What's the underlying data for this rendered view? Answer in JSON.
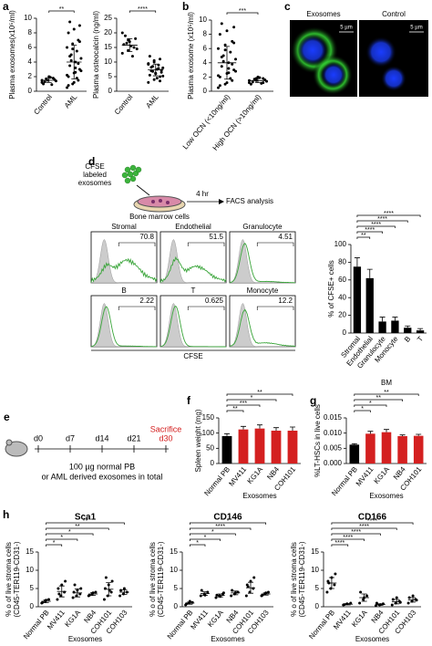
{
  "images_c": {
    "panel": "c",
    "labels": [
      "Exosomes",
      "Control"
    ],
    "scale": [
      "5 µm",
      "5 µm"
    ]
  },
  "schematic_d": {
    "panel": "d",
    "texts": [
      "CFSE",
      "labeled",
      "exosomes"
    ],
    "time": "4 hr",
    "assay": "FACS analysis",
    "cells": "Bone marrow cells"
  },
  "flow": {
    "xlabel": "CFSE",
    "panels": [
      {
        "name": "Stromal",
        "value": 70.8
      },
      {
        "name": "Endothelial",
        "value": 51.5
      },
      {
        "name": "Granulocyte",
        "value": 4.51
      },
      {
        "name": "B",
        "value": 2.22
      },
      {
        "name": "T",
        "value": 0.625
      },
      {
        "name": "Monocyte",
        "value": 12.2
      }
    ]
  },
  "schematic_e": {
    "panel": "e",
    "days": [
      "d0",
      "d7",
      "d14",
      "d21",
      "d30"
    ],
    "event": "Sacrifice",
    "lines": [
      "100 µg normal PB",
      "or AML derived exosomes in total"
    ]
  },
  "chart_data": [
    {
      "type": "dot",
      "panel": "a",
      "ylabel": "Plasma exosomes(x10⁵/ml)",
      "categories": [
        "Control",
        "AML"
      ],
      "points": [
        [
          1.2,
          1.5,
          1.8,
          1.0,
          2.0,
          1.6,
          1.3,
          1.9,
          1.4,
          1.7,
          0.9,
          1.5
        ],
        [
          0.5,
          1.0,
          1.5,
          2.0,
          2.5,
          3.0,
          3.5,
          4.0,
          4.5,
          5.0,
          5.5,
          6.0,
          6.5,
          7.0,
          8.0,
          8.5,
          9.0,
          9.5,
          3.2,
          2.8,
          4.2,
          1.8,
          2.2,
          5.8,
          3.8,
          0.8,
          1.2,
          6.8,
          4.8,
          2.6
        ]
      ],
      "means": [
        1.5,
        4.0
      ],
      "errors": [
        0.3,
        2.3
      ],
      "ylim": [
        0,
        10
      ],
      "yticks": [
        0,
        2,
        4,
        6,
        8,
        10
      ],
      "significance": [
        {
          "from": 0,
          "to": 1,
          "label": "**"
        }
      ]
    },
    {
      "type": "dot",
      "ylabel": "Plasma osteocalcin (ng/ml)",
      "categories": [
        "Control",
        "AML"
      ],
      "points": [
        [
          13,
          14,
          15,
          16,
          17,
          18,
          19,
          15.5,
          14.5,
          16.5,
          12,
          20,
          17.5
        ],
        [
          3,
          4,
          5,
          5.5,
          6,
          6.5,
          7,
          7.5,
          8,
          8.5,
          9,
          9.5,
          10,
          11,
          12,
          6.2,
          7.2,
          8.2,
          4.5,
          5.2,
          6.8,
          7.8,
          9.2,
          10.5,
          3.5
        ]
      ],
      "means": [
        15.8,
        7.3
      ],
      "errors": [
        2.2,
        2.0
      ],
      "ylim": [
        0,
        25
      ],
      "yticks": [
        0,
        5,
        10,
        15,
        20,
        25
      ],
      "significance": [
        {
          "from": 0,
          "to": 1,
          "label": "****"
        }
      ]
    },
    {
      "type": "dot",
      "panel": "b",
      "ylabel": "Plasma exosome (x10⁵/ml)",
      "categories": [
        "Low OCN (<10ng/ml)",
        "High OCN (>10ng/ml)"
      ],
      "points": [
        [
          0.5,
          1.0,
          1.5,
          2.0,
          2.5,
          3.0,
          3.5,
          4.0,
          4.5,
          5.0,
          5.5,
          6.0,
          6.5,
          7.0,
          8.0,
          8.5,
          9.0,
          9.5,
          3.2,
          2.8,
          4.2,
          1.8,
          2.2,
          5.8,
          3.8,
          0.8,
          1.2,
          6.8,
          4.8,
          2.6
        ],
        [
          1.2,
          1.5,
          1.8,
          1.0,
          2.0,
          1.6,
          1.3,
          1.9,
          1.4,
          1.7,
          1.1,
          1.5,
          1.8,
          1.2
        ]
      ],
      "means": [
        4.0,
        1.5
      ],
      "errors": [
        2.3,
        0.3
      ],
      "ylim": [
        0,
        10
      ],
      "yticks": [
        0,
        2,
        4,
        6,
        8,
        10
      ],
      "significance": [
        {
          "from": 0,
          "to": 1,
          "label": "***"
        }
      ]
    },
    {
      "type": "bar",
      "ylabel": "% of  CFSE+ cells",
      "categories": [
        "Stromal",
        "Endothelial",
        "Granulocyte",
        "Monocyte",
        "B",
        "T"
      ],
      "values": [
        75,
        62,
        13,
        14,
        6,
        3
      ],
      "errors": [
        10,
        10,
        5,
        4,
        2,
        2
      ],
      "colors": [
        "#000",
        "#000",
        "#000",
        "#000",
        "#000",
        "#000"
      ],
      "ylim": [
        0,
        100
      ],
      "yticks": [
        0,
        20,
        40,
        60,
        80,
        100
      ],
      "significance": [
        {
          "from": 0,
          "to": 5,
          "label": "****"
        },
        {
          "from": 0,
          "to": 4,
          "label": "****"
        },
        {
          "from": 0,
          "to": 3,
          "label": "****"
        },
        {
          "from": 0,
          "to": 2,
          "label": "****"
        },
        {
          "from": 0,
          "to": 1,
          "label": "**"
        }
      ]
    },
    {
      "type": "bar",
      "panel": "f",
      "ylabel": "Spleen weight (mg)",
      "xlabel": "Exosomes",
      "categories": [
        "Normal PB",
        "MV411",
        "KG1A",
        "NB4",
        "COH101"
      ],
      "values": [
        90,
        112,
        115,
        108,
        108
      ],
      "errors": [
        8,
        10,
        12,
        10,
        12
      ],
      "colors": [
        "#000",
        "#d42020",
        "#d42020",
        "#d42020",
        "#d42020"
      ],
      "ylim": [
        0,
        150
      ],
      "yticks": [
        0,
        50,
        100,
        150
      ],
      "significance": [
        {
          "from": 0,
          "to": 4,
          "label": "**"
        },
        {
          "from": 0,
          "to": 3,
          "label": "*"
        },
        {
          "from": 0,
          "to": 2,
          "label": "***"
        },
        {
          "from": 0,
          "to": 1,
          "label": "**"
        }
      ]
    },
    {
      "type": "bar",
      "panel": "g",
      "title": "BM",
      "ylabel": "%LT-HSCs in live cells",
      "xlabel": "Exosomes",
      "categories": [
        "Normal PB",
        "MV411",
        "KG1A",
        "NB4",
        "COH101"
      ],
      "values": [
        0.0062,
        0.0098,
        0.0103,
        0.009,
        0.0091
      ],
      "errors": [
        0.0003,
        0.0008,
        0.0009,
        0.0004,
        0.0005
      ],
      "colors": [
        "#000",
        "#d42020",
        "#d42020",
        "#d42020",
        "#d42020"
      ],
      "ylim": [
        0,
        0.015
      ],
      "yticks": [
        {
          "value": 0,
          "label": "0.000"
        },
        {
          "value": 0.005,
          "label": "0.005"
        },
        {
          "value": 0.01,
          "label": "0.010"
        },
        {
          "value": 0.015,
          "label": "0.015"
        }
      ],
      "significance": [
        {
          "from": 0,
          "to": 4,
          "label": "**"
        },
        {
          "from": 0,
          "to": 3,
          "label": "**"
        },
        {
          "from": 0,
          "to": 2,
          "label": "*"
        },
        {
          "from": 0,
          "to": 1,
          "label": "*"
        }
      ]
    },
    {
      "type": "dot",
      "panel": "h",
      "title": "Sca1",
      "ylabel": [
        "% o of live stroma cells",
        "(CD45-TER119-CD31-)"
      ],
      "xlabel": "Exosomes",
      "categories": [
        "Normal PB",
        "MV411",
        "KG1A",
        "NB4",
        "COH101",
        "COH103"
      ],
      "points": [
        [
          1,
          1.5,
          2,
          1.2,
          1.8
        ],
        [
          2,
          3,
          4,
          5,
          6,
          7,
          3.5
        ],
        [
          2.5,
          3,
          3.5,
          4,
          4.5,
          5,
          6
        ],
        [
          3,
          3.5,
          4,
          3.2,
          3.8
        ],
        [
          2,
          3,
          4,
          5,
          6,
          7,
          8,
          4.5
        ],
        [
          3,
          3.5,
          4,
          4.5,
          5
        ]
      ],
      "means": [
        1.5,
        4.2,
        3.8,
        3.5,
        4.8,
        4
      ],
      "errors": [
        0.4,
        1.5,
        1.1,
        0.4,
        1.8,
        0.6
      ],
      "ylim": [
        0,
        15
      ],
      "yticks": [
        0,
        5,
        10,
        15
      ],
      "significance": [
        {
          "from": 0,
          "to": 5,
          "label": "**"
        },
        {
          "from": 0,
          "to": 4,
          "label": "**"
        },
        {
          "from": 0,
          "to": 3,
          "label": "*"
        },
        {
          "from": 0,
          "to": 2,
          "label": "*"
        },
        {
          "from": 0,
          "to": 1,
          "label": "*"
        }
      ]
    },
    {
      "type": "dot",
      "title": "CD146",
      "ylabel": [
        "% o of live stroma cells",
        "(CD45-TER119-CD31-)"
      ],
      "xlabel": "Exosomes",
      "categories": [
        "Normal PB",
        "MV411",
        "KG1A",
        "NB4",
        "COH101",
        "COH103"
      ],
      "points": [
        [
          0.5,
          1,
          1.2,
          0.8,
          1.5
        ],
        [
          3,
          3.5,
          4,
          4.5,
          3.2
        ],
        [
          2.5,
          3,
          3.5,
          3.2,
          2.8,
          3.8
        ],
        [
          3,
          3.5,
          4,
          4.5,
          3.8
        ],
        [
          3,
          4,
          5,
          6,
          7,
          8,
          5.5
        ],
        [
          3,
          3.5,
          4,
          3.2,
          3.8
        ]
      ],
      "means": [
        1.0,
        3.6,
        3.1,
        3.8,
        5.2,
        3.5
      ],
      "errors": [
        0.3,
        0.5,
        0.4,
        0.5,
        1.5,
        0.3
      ],
      "ylim": [
        0,
        15
      ],
      "yticks": [
        0,
        5,
        10,
        15
      ],
      "significance": [
        {
          "from": 0,
          "to": 5,
          "label": "*"
        },
        {
          "from": 0,
          "to": 4,
          "label": "****"
        },
        {
          "from": 0,
          "to": 3,
          "label": "*"
        },
        {
          "from": 0,
          "to": 2,
          "label": "*"
        },
        {
          "from": 0,
          "to": 1,
          "label": "*"
        }
      ]
    },
    {
      "type": "dot",
      "title": "CD166",
      "ylabel": [
        "% o of live stroma cells",
        "(CD45-TER119-CD31-)"
      ],
      "xlabel": "Exosomes",
      "categories": [
        "Normal PB",
        "MV411",
        "KG1A",
        "NB4",
        "COH101",
        "COH103"
      ],
      "points": [
        [
          4,
          5,
          6,
          7,
          8,
          9,
          6.5
        ],
        [
          0.5,
          0.8,
          1,
          0.6
        ],
        [
          1,
          2,
          3,
          4,
          2.5
        ],
        [
          0.3,
          0.5,
          0.8,
          1,
          0.6
        ],
        [
          0.5,
          1,
          1.5,
          2,
          2.5,
          1.2
        ],
        [
          1,
          1.5,
          2,
          2.5,
          3,
          1.8
        ]
      ],
      "means": [
        6.5,
        0.7,
        2.5,
        0.6,
        1.4,
        1.9
      ],
      "errors": [
        1.5,
        0.2,
        1,
        0.2,
        0.6,
        0.6
      ],
      "ylim": [
        0,
        15
      ],
      "yticks": [
        0,
        5,
        10,
        15
      ],
      "significance": [
        {
          "from": 0,
          "to": 5,
          "label": "****"
        },
        {
          "from": 0,
          "to": 4,
          "label": "****"
        },
        {
          "from": 0,
          "to": 3,
          "label": "****"
        },
        {
          "from": 0,
          "to": 2,
          "label": "****"
        },
        {
          "from": 0,
          "to": 1,
          "label": "****"
        }
      ]
    }
  ]
}
